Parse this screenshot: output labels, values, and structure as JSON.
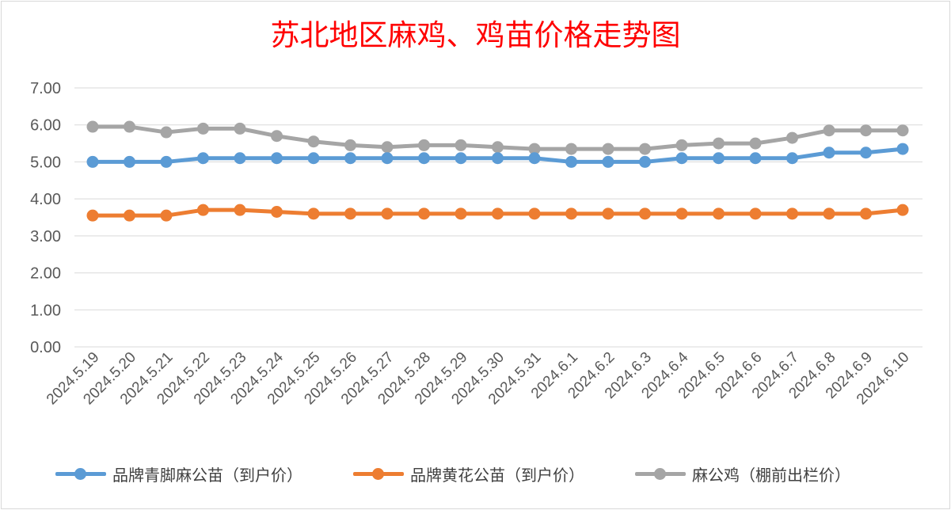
{
  "chart_data": {
    "type": "line",
    "title": "苏北地区麻鸡、鸡苗价格走势图",
    "categories": [
      "2024.5.19",
      "2024.5.20",
      "2024.5.21",
      "2024.5.22",
      "2024.5.23",
      "2024.5.24",
      "2024.5.25",
      "2024.5.26",
      "2024.5.27",
      "2024.5.28",
      "2024.5.29",
      "2024.5.30",
      "2024.5.31",
      "2024.6.1",
      "2024.6.2",
      "2024.6.3",
      "2024.6.4",
      "2024.6.5",
      "2024.6.6",
      "2024.6.7",
      "2024.6.8",
      "2024.6.9",
      "2024.6.10"
    ],
    "ylim": [
      0,
      7
    ],
    "yticks": [
      "0.00",
      "1.00",
      "2.00",
      "3.00",
      "4.00",
      "5.00",
      "6.00",
      "7.00"
    ],
    "grid": true,
    "legend_position": "bottom",
    "series": [
      {
        "name": "品牌青脚麻公苗（到户价）",
        "color": "#5b9bd5",
        "values": [
          5.0,
          5.0,
          5.0,
          5.1,
          5.1,
          5.1,
          5.1,
          5.1,
          5.1,
          5.1,
          5.1,
          5.1,
          5.1,
          5.0,
          5.0,
          5.0,
          5.1,
          5.1,
          5.1,
          5.1,
          5.25,
          5.25,
          5.35
        ]
      },
      {
        "name": "品牌黄花公苗（到户价）",
        "color": "#ed7d31",
        "values": [
          3.55,
          3.55,
          3.55,
          3.7,
          3.7,
          3.65,
          3.6,
          3.6,
          3.6,
          3.6,
          3.6,
          3.6,
          3.6,
          3.6,
          3.6,
          3.6,
          3.6,
          3.6,
          3.6,
          3.6,
          3.6,
          3.6,
          3.7
        ]
      },
      {
        "name": "麻公鸡（棚前出栏价）",
        "color": "#a5a5a5",
        "values": [
          5.95,
          5.95,
          5.8,
          5.9,
          5.9,
          5.7,
          5.55,
          5.45,
          5.4,
          5.45,
          5.45,
          5.4,
          5.35,
          5.35,
          5.35,
          5.35,
          5.45,
          5.5,
          5.5,
          5.65,
          5.85,
          5.85,
          5.85
        ]
      }
    ]
  }
}
